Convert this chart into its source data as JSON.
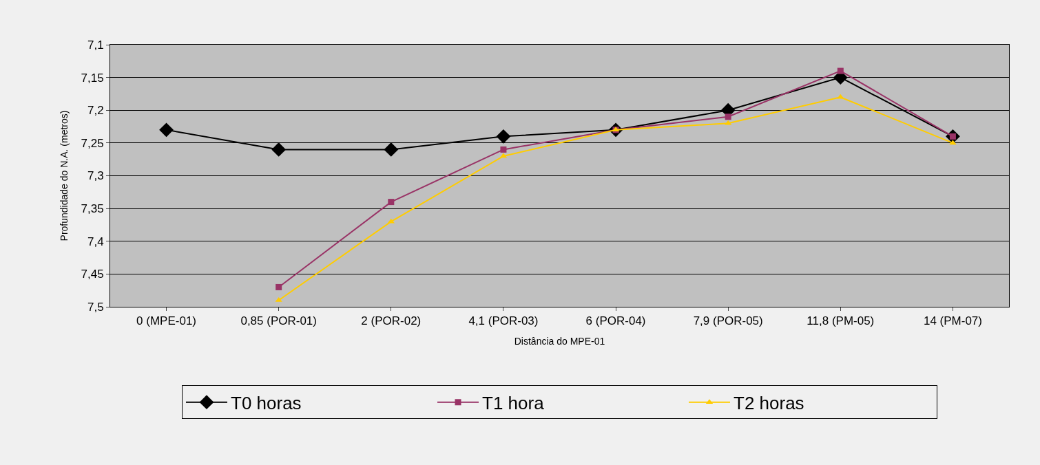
{
  "chart_data": {
    "type": "line",
    "xlabel": "Distância do MPE-01",
    "ylabel": "Profundidade do N.A. (metros)",
    "categories": [
      "0 (MPE-01)",
      "0,85 (POR-01)",
      "2 (POR-02)",
      "4,1 (POR-03)",
      "6 (POR-04)",
      "7,9 (POR-05)",
      "11,8 (PM-05)",
      "14 (PM-07)"
    ],
    "series": [
      {
        "name": "T0 horas",
        "color": "#000000",
        "marker": "diamond",
        "values": [
          7.23,
          7.26,
          7.26,
          7.24,
          7.23,
          7.2,
          7.15,
          7.24
        ]
      },
      {
        "name": "T1 hora",
        "color": "#993366",
        "marker": "square",
        "values": [
          null,
          7.47,
          7.34,
          7.26,
          7.23,
          7.21,
          7.14,
          7.24
        ]
      },
      {
        "name": "T2 horas",
        "color": "#ffcc00",
        "marker": "triangle",
        "values": [
          null,
          7.49,
          7.37,
          7.27,
          7.23,
          7.22,
          7.18,
          7.25
        ]
      }
    ],
    "ylim": [
      7.5,
      7.1
    ],
    "yticks": [
      {
        "value": 7.1,
        "label": "7,1"
      },
      {
        "value": 7.15,
        "label": "7,15"
      },
      {
        "value": 7.2,
        "label": "7,2"
      },
      {
        "value": 7.25,
        "label": "7,25"
      },
      {
        "value": 7.3,
        "label": "7,3"
      },
      {
        "value": 7.35,
        "label": "7,35"
      },
      {
        "value": 7.4,
        "label": "7,4"
      },
      {
        "value": 7.45,
        "label": "7,45"
      },
      {
        "value": 7.5,
        "label": "7,5"
      }
    ],
    "grid": "y",
    "legend": "bottom"
  }
}
